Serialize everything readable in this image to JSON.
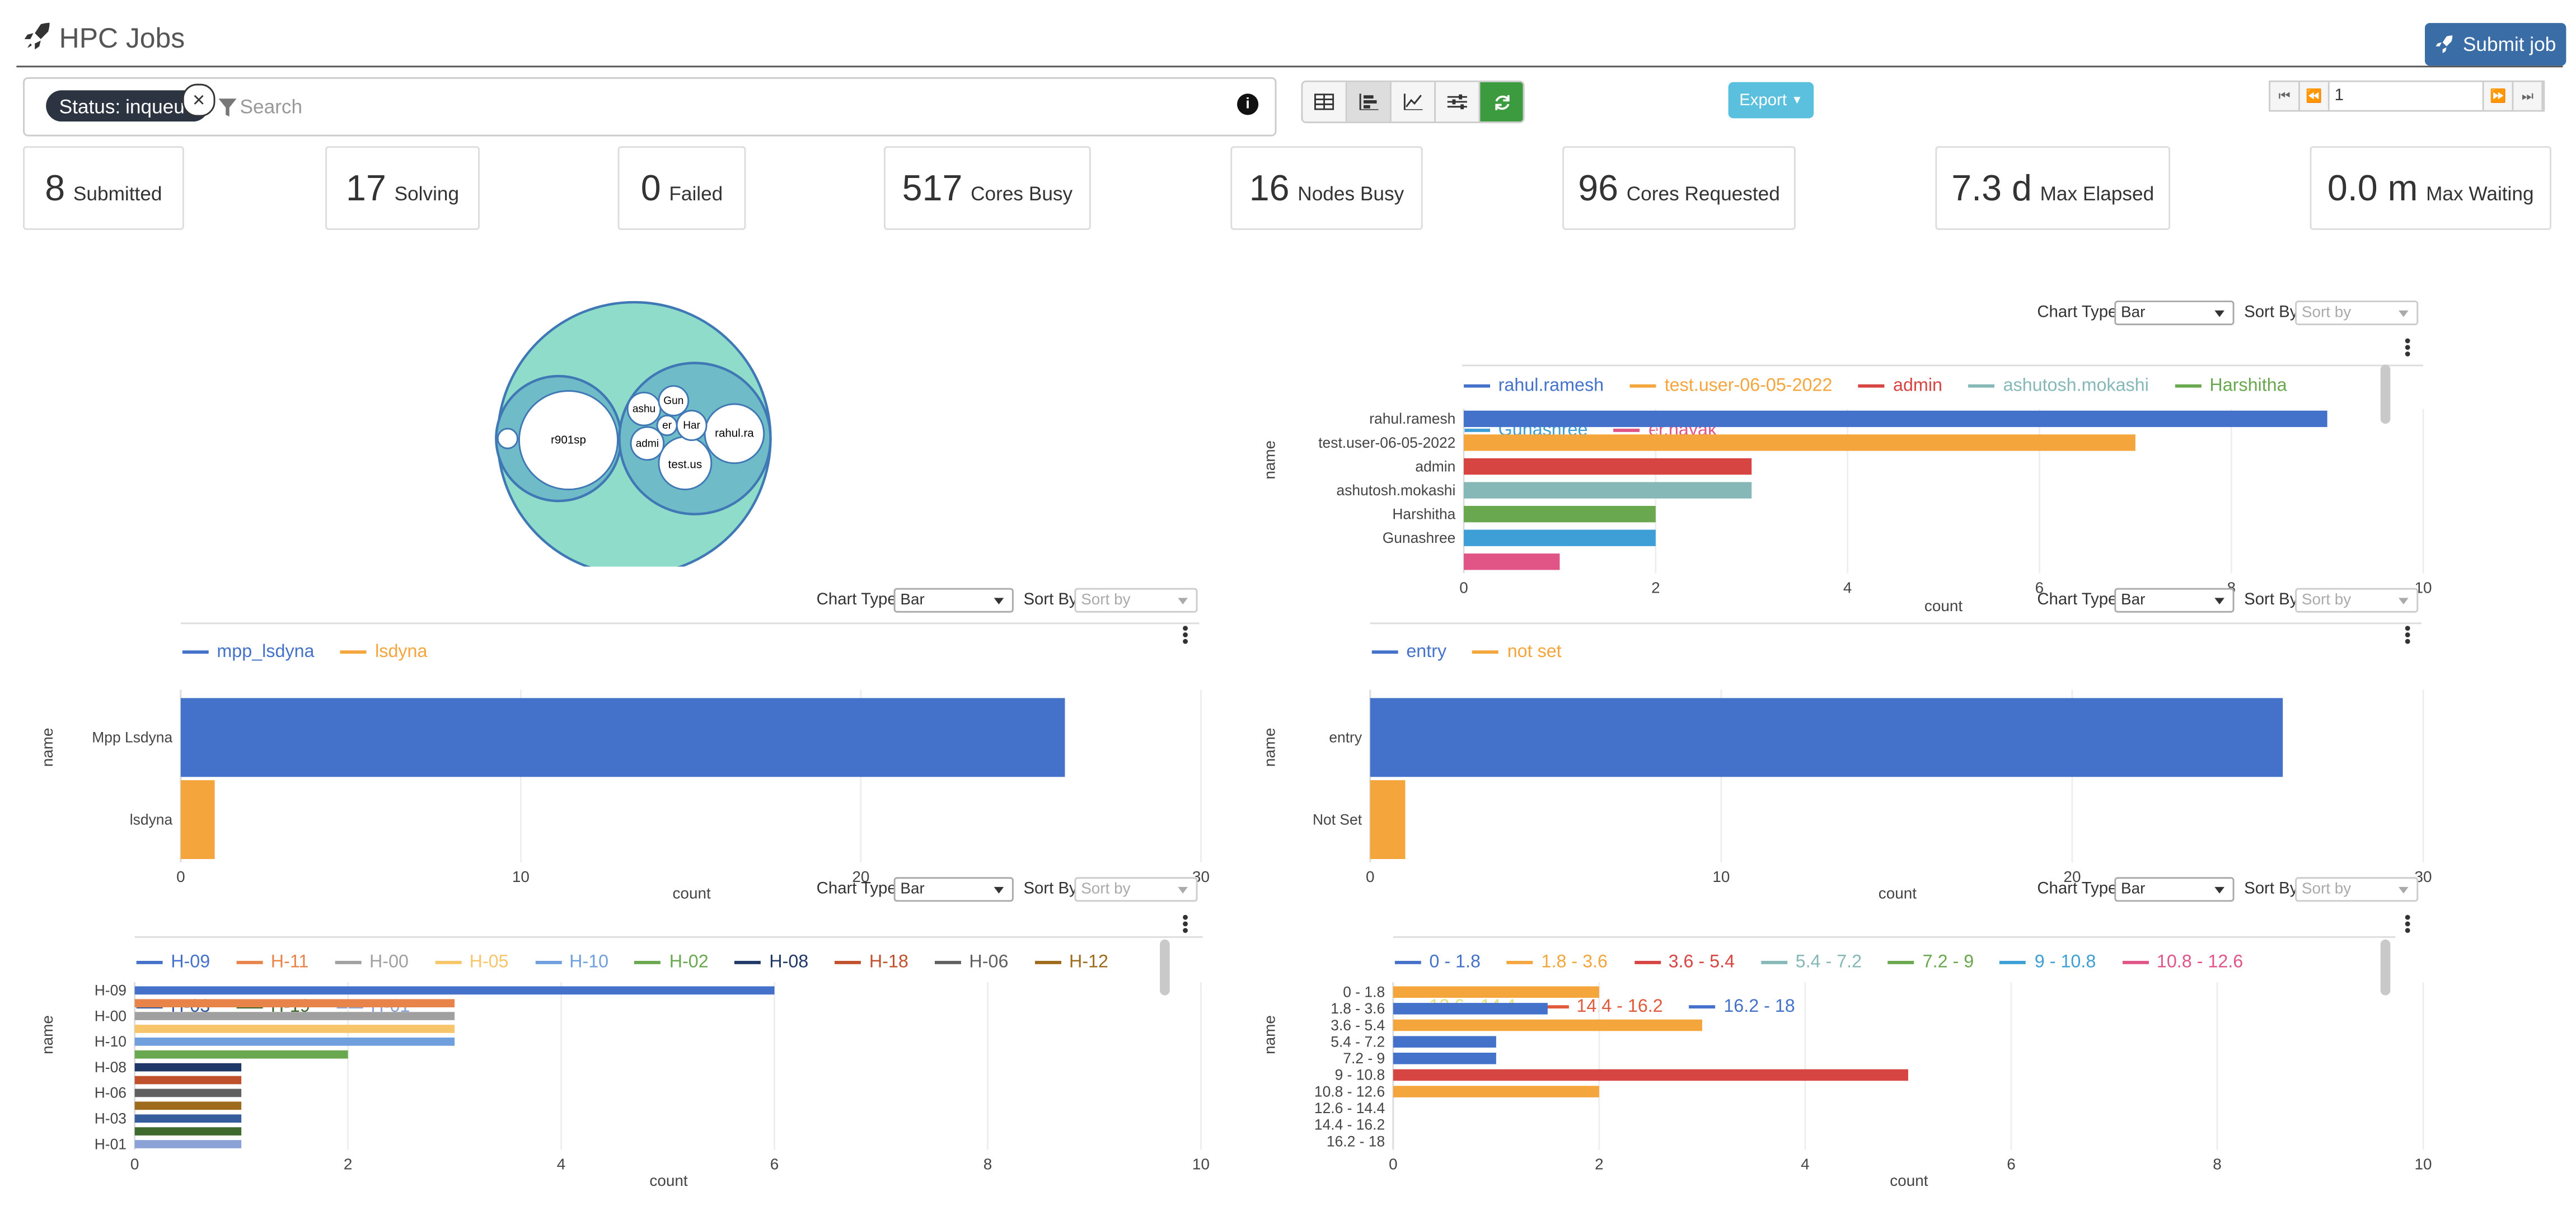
{
  "header": {
    "title": "HPC Jobs",
    "submit_label": "Submit job"
  },
  "filter": {
    "tag_key": "Status:",
    "tag_value": "inqueue",
    "search_placeholder": "Search"
  },
  "export_label": "Export",
  "pager": {
    "page": "1"
  },
  "stats": [
    {
      "value": "8",
      "label": "Submitted"
    },
    {
      "value": "17",
      "label": "Solving"
    },
    {
      "value": "0",
      "label": "Failed"
    },
    {
      "value": "517",
      "label": "Cores Busy"
    },
    {
      "value": "16",
      "label": "Nodes Busy"
    },
    {
      "value": "96",
      "label": "Cores Requested"
    },
    {
      "value": "7.3 d",
      "label": "Max Elapsed"
    },
    {
      "value": "0.0 m",
      "label": "Max Waiting"
    }
  ],
  "controls": {
    "chart_type_label": "Chart Type",
    "chart_type_value": "Bar",
    "sort_label": "Sort By",
    "sort_placeholder": "Sort by"
  },
  "bubble": {
    "labels": [
      "r901sp",
      "rahul.ra",
      "test.us",
      "ashu",
      "Gun",
      "er",
      "Har",
      "admi"
    ]
  },
  "chart_data": [
    {
      "type": "bar",
      "ylabel": "name",
      "xlabel": "count",
      "xlim": [
        0,
        10
      ],
      "ticks": [
        "0",
        "2",
        "4",
        "6",
        "8",
        "10"
      ],
      "legend": [
        {
          "name": "rahul.ramesh",
          "color": "#4472ca"
        },
        {
          "name": "test.user-06-05-2022",
          "color": "#f4a53c"
        },
        {
          "name": "admin",
          "color": "#d64541"
        },
        {
          "name": "ashutosh.mokashi",
          "color": "#86b8b8"
        },
        {
          "name": "Harshitha",
          "color": "#6aa84f"
        },
        {
          "name": "Gunashree",
          "color": "#3d9fd6"
        },
        {
          "name": "er.nayak",
          "color": "#e05585"
        }
      ],
      "categories": [
        "rahul.ramesh",
        "test.user-06-05-2022",
        "admin",
        "ashutosh.mokashi",
        "Harshitha",
        "Gunashree",
        ""
      ],
      "values": [
        9,
        7,
        3,
        3,
        2,
        2,
        1
      ]
    },
    {
      "type": "bar",
      "ylabel": "name",
      "xlabel": "count",
      "xlim": [
        0,
        30
      ],
      "ticks": [
        "0",
        "10",
        "20",
        "30"
      ],
      "legend": [
        {
          "name": "mpp_lsdyna",
          "color": "#4472ca"
        },
        {
          "name": "lsdyna",
          "color": "#f4a53c"
        }
      ],
      "categories": [
        "Mpp Lsdyna",
        "lsdyna"
      ],
      "values": [
        26,
        1
      ]
    },
    {
      "type": "bar",
      "ylabel": "name",
      "xlabel": "count",
      "xlim": [
        0,
        30
      ],
      "ticks": [
        "0",
        "10",
        "20",
        "30"
      ],
      "legend": [
        {
          "name": "entry",
          "color": "#4472ca"
        },
        {
          "name": "not set",
          "color": "#f4a53c"
        }
      ],
      "categories": [
        "entry",
        "Not Set"
      ],
      "values": [
        26,
        1
      ]
    },
    {
      "type": "bar",
      "ylabel": "name",
      "xlabel": "count",
      "xlim": [
        0,
        10
      ],
      "ticks": [
        "0",
        "2",
        "4",
        "6",
        "8",
        "10"
      ],
      "legend": [
        {
          "name": "H-09",
          "color": "#4472ca"
        },
        {
          "name": "H-11",
          "color": "#e8834a"
        },
        {
          "name": "H-00",
          "color": "#a0a0a0"
        },
        {
          "name": "H-05",
          "color": "#f7c66a"
        },
        {
          "name": "H-10",
          "color": "#6f9fdc"
        },
        {
          "name": "H-02",
          "color": "#6aa84f"
        },
        {
          "name": "H-08",
          "color": "#1f3868"
        },
        {
          "name": "H-18",
          "color": "#c0512d"
        },
        {
          "name": "H-06",
          "color": "#606060"
        },
        {
          "name": "H-12",
          "color": "#9e6a1c"
        },
        {
          "name": "H-03",
          "color": "#355d9c"
        },
        {
          "name": "H-19",
          "color": "#3e6b2d"
        },
        {
          "name": "H-01",
          "color": "#8aa2d6"
        }
      ],
      "categories": [
        "H-09",
        "H-11",
        "H-00",
        "H-05",
        "H-10",
        "H-02",
        "H-08",
        "H-18",
        "H-06",
        "H-12",
        "H-03",
        "H-19",
        "H-01"
      ],
      "tick_categories": [
        "H-09",
        "H-00",
        "H-10",
        "H-08",
        "H-06",
        "H-03",
        "H-01"
      ],
      "values": [
        6,
        3,
        3,
        3,
        3,
        2,
        1,
        1,
        1,
        1,
        1,
        1,
        1
      ]
    },
    {
      "type": "bar",
      "ylabel": "name",
      "xlabel": "count",
      "xlim": [
        0,
        10
      ],
      "ticks": [
        "0",
        "2",
        "4",
        "6",
        "8",
        "10"
      ],
      "legend": [
        {
          "name": "0 - 1.8",
          "color": "#4472ca"
        },
        {
          "name": "1.8 - 3.6",
          "color": "#f4a53c"
        },
        {
          "name": "3.6 - 5.4",
          "color": "#d64541"
        },
        {
          "name": "5.4 - 7.2",
          "color": "#86b8b8"
        },
        {
          "name": "7.2 - 9",
          "color": "#6aa84f"
        },
        {
          "name": "9 - 10.8",
          "color": "#3d9fd6"
        },
        {
          "name": "10.8 - 12.6",
          "color": "#e05585"
        },
        {
          "name": "12.6 - 14.4",
          "color": "#e2e27a"
        },
        {
          "name": "14.4 - 16.2",
          "color": "#e05a3c"
        },
        {
          "name": "16.2 - 18",
          "color": "#4472ca"
        }
      ],
      "categories": [
        "0 - 1.8",
        "1.8 - 3.6",
        "3.6 - 5.4",
        "5.4 - 7.2",
        "7.2 - 9",
        "9 - 10.8",
        "10.8 - 12.6",
        "12.6 - 14.4",
        "14.4 - 16.2",
        "16.2 - 18"
      ],
      "values": [
        2,
        1.5,
        3,
        1,
        1,
        5,
        2,
        0,
        0,
        0
      ],
      "bar_colors": [
        "#f4a53c",
        "#4472ca",
        "#f4a53c",
        "#4472ca",
        "#4472ca",
        "#d64541",
        "#f4a53c",
        "#ccc",
        "#ccc",
        "#ccc"
      ]
    }
  ]
}
